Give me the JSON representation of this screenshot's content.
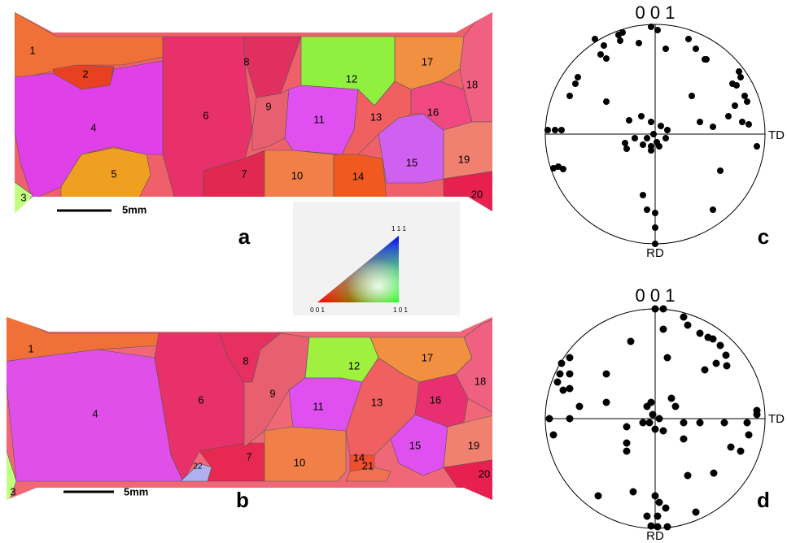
{
  "panel_a": {
    "label": "a",
    "grain_labels": [
      1,
      2,
      3,
      4,
      5,
      6,
      7,
      8,
      9,
      10,
      11,
      12,
      13,
      14,
      15,
      16,
      17,
      18,
      19,
      20
    ],
    "scale_bar": "5mm"
  },
  "panel_b": {
    "label": "b",
    "grain_labels": [
      1,
      3,
      4,
      6,
      7,
      8,
      9,
      10,
      11,
      12,
      13,
      14,
      15,
      16,
      17,
      18,
      19,
      20,
      21,
      22
    ],
    "scale_bar": "5mm"
  },
  "color_key": {
    "corner_001": "0 0 1",
    "corner_101": "1 0 1",
    "corner_111": "1 1 1"
  },
  "pole_figure_c": {
    "label": "c",
    "title": "0 0 1",
    "x_direction": "TD",
    "y_direction": "RD"
  },
  "pole_figure_d": {
    "label": "d",
    "title": "0 0 1",
    "x_direction": "TD",
    "y_direction": "RD"
  }
}
